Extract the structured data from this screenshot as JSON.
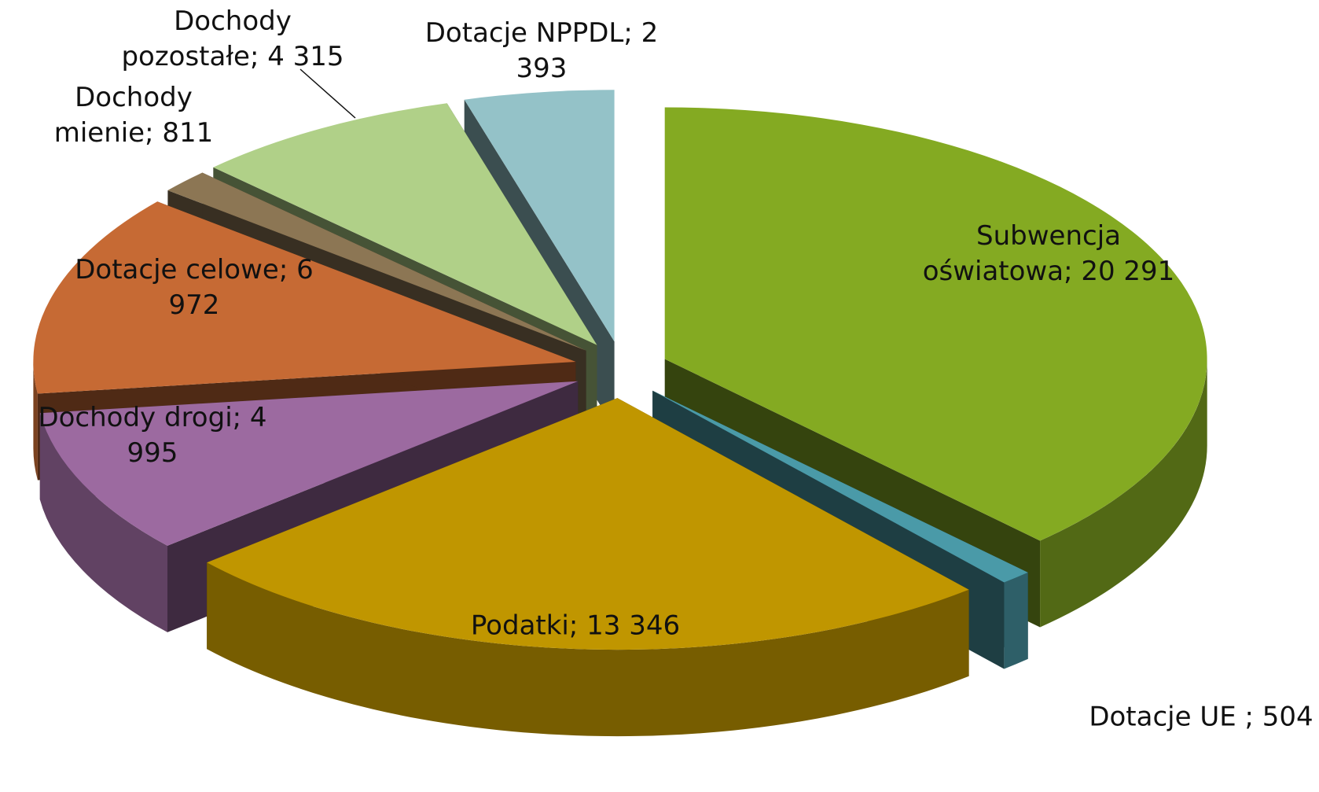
{
  "chart_data": {
    "type": "pie3d",
    "categories": [
      "Subwencja oświatowa",
      "Dotacje UE ",
      "Podatki",
      "Dochody drogi",
      "Dotacje celowe",
      "Dochody mienie",
      "Dochody pozostałe",
      "Dotacje NPPDL"
    ],
    "values": [
      20291,
      504,
      13346,
      4995,
      6972,
      811,
      4315,
      2393
    ],
    "value_labels": [
      "20 291",
      "504",
      "13 346",
      "4 995",
      "6 972",
      "811",
      "4 315",
      "2 393"
    ],
    "label_separator": "; ",
    "colors": [
      "#84aa22",
      "#4a9aa8",
      "#c09600",
      "#9c6aa0",
      "#c66a34",
      "#8c7654",
      "#b0d088",
      "#94c2c8"
    ],
    "exploded": true
  }
}
